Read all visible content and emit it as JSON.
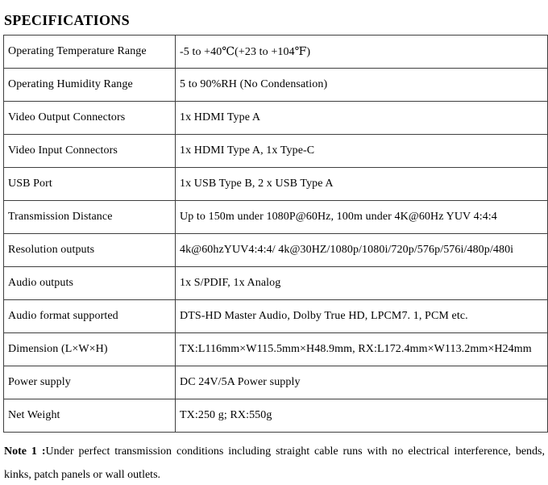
{
  "page": {
    "title": "SPECIFICATIONS"
  },
  "colors": {
    "background": "#ffffff",
    "text": "#000000",
    "table_border": "#3f3f3f"
  },
  "table": {
    "rows": [
      {
        "label": "Operating Temperature Range",
        "value": "-5 to +40℃(+23 to +104℉)"
      },
      {
        "label": "Operating Humidity Range",
        "value": "5 to 90%RH (No Condensation)"
      },
      {
        "label": "Video Output Connectors",
        "value": "1x HDMI Type A"
      },
      {
        "label": "Video Input Connectors",
        "value": "1x HDMI Type A, 1x Type-C"
      },
      {
        "label": "USB Port",
        "value": "1x USB Type B, 2 x USB Type A"
      },
      {
        "label": "Transmission Distance",
        "value": "Up to 150m under 1080P@60Hz, 100m under 4K@60Hz YUV 4:4:4"
      },
      {
        "label": "Resolution outputs",
        "value": "4k@60hzYUV4:4:4/ 4k@30HZ/1080p/1080i/720p/576p/576i/480p/480i"
      },
      {
        "label": "Audio outputs",
        "value": "1x S/PDIF, 1x Analog"
      },
      {
        "label": "Audio format supported",
        "value": "DTS-HD Master Audio, Dolby True HD, LPCM7. 1, PCM etc."
      },
      {
        "label": "Dimension (L×W×H)",
        "value": "TX:L116mm×W115.5mm×H48.9mm, RX:L172.4mm×W113.2mm×H24mm"
      },
      {
        "label": "Power supply",
        "value": "DC 24V/5A Power supply"
      },
      {
        "label": "Net Weight",
        "value": "TX:250 g; RX:550g"
      }
    ]
  },
  "note": {
    "label": "Note 1 :",
    "text": "Under perfect transmission conditions including straight cable runs with no electrical interference, bends, kinks, patch panels or wall outlets."
  }
}
